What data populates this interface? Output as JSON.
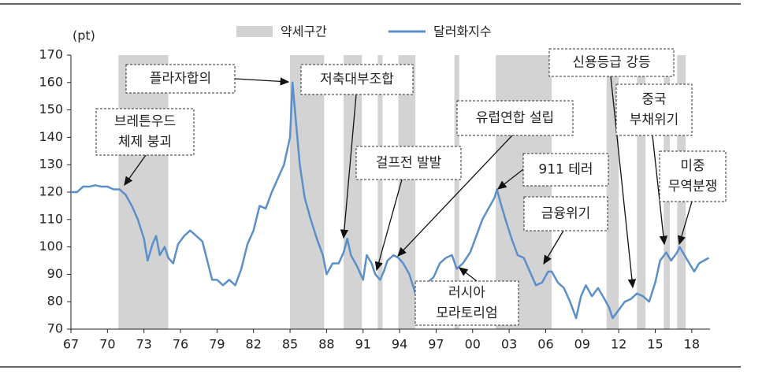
{
  "chart_data": {
    "type": "line",
    "y_label": "(pt)",
    "bands": {
      "name": "약세구간",
      "color": "#d3d3d3",
      "ranges": [
        [
          1970.9,
          1975.0
        ],
        [
          1985.0,
          1987.8
        ],
        [
          1989.4,
          1990.9
        ],
        [
          1992.2,
          1992.6
        ],
        [
          1993.9,
          1995.3
        ],
        [
          1998.5,
          1998.9
        ],
        [
          2001.9,
          2006.5
        ],
        [
          2011.0,
          2012.0
        ],
        [
          2013.5,
          2014.2
        ],
        [
          2015.7,
          2016.2
        ],
        [
          2016.8,
          2017.5
        ]
      ]
    },
    "x": [
      1967.0,
      1967.5,
      1968.0,
      1968.5,
      1969.0,
      1969.5,
      1970.0,
      1970.5,
      1971.0,
      1971.5,
      1972.0,
      1972.5,
      1973.0,
      1973.3,
      1973.7,
      1974.0,
      1974.3,
      1974.7,
      1975.0,
      1975.4,
      1975.8,
      1976.3,
      1976.8,
      1977.3,
      1977.8,
      1978.2,
      1978.6,
      1979.0,
      1979.5,
      1980.0,
      1980.5,
      1981.0,
      1981.5,
      1982.0,
      1982.5,
      1983.0,
      1983.5,
      1984.0,
      1984.5,
      1985.0,
      1985.2,
      1985.5,
      1985.8,
      1986.2,
      1986.7,
      1987.2,
      1987.7,
      1988.0,
      1988.5,
      1989.0,
      1989.4,
      1989.7,
      1990.0,
      1990.5,
      1991.0,
      1991.3,
      1991.7,
      1992.0,
      1992.4,
      1992.7,
      1993.0,
      1993.5,
      1993.9,
      1994.3,
      1994.8,
      1995.3,
      1995.8,
      1996.3,
      1996.8,
      1997.3,
      1997.8,
      1998.3,
      1998.7,
      1999.2,
      1999.8,
      2000.3,
      2000.8,
      2001.3,
      2001.8,
      2002.0,
      2002.3,
      2002.7,
      2003.2,
      2003.7,
      2004.2,
      2004.7,
      2005.2,
      2005.7,
      2006.2,
      2006.5,
      2007.0,
      2007.5,
      2008.0,
      2008.5,
      2008.9,
      2009.3,
      2009.8,
      2010.3,
      2010.7,
      2011.2,
      2011.5,
      2012.0,
      2012.5,
      2013.0,
      2013.5,
      2014.0,
      2014.5,
      2015.0,
      2015.4,
      2015.9,
      2016.3,
      2016.8,
      2017.0,
      2017.4,
      2017.8,
      2018.2,
      2018.6,
      2019.0,
      2019.4
    ],
    "series": [
      {
        "name": "달러화지수",
        "color": "#5b8fc9",
        "values": [
          120,
          120,
          122,
          122,
          122.5,
          122,
          122,
          121,
          121,
          119,
          115,
          110,
          103,
          95,
          101,
          104,
          97,
          100,
          96,
          94,
          101,
          104,
          106,
          104,
          102,
          95,
          88,
          88,
          86,
          88,
          86,
          92,
          101,
          106,
          115,
          114,
          120,
          125,
          130,
          140,
          160,
          145,
          130,
          118,
          110,
          103,
          97,
          90,
          94,
          94,
          98,
          103,
          97,
          93,
          88,
          97,
          94,
          90,
          88,
          91,
          95,
          97,
          96,
          94,
          90,
          83,
          87,
          87,
          89,
          94,
          96,
          97,
          92,
          94,
          98,
          104,
          110,
          114,
          118,
          121,
          116,
          110,
          103,
          97,
          96,
          91,
          86,
          87,
          91,
          91,
          87,
          85,
          80,
          74,
          82,
          86,
          82,
          85,
          82,
          78,
          74,
          77,
          80,
          81,
          83,
          82,
          80,
          87,
          95,
          98,
          95,
          98,
          100,
          97,
          94,
          91,
          94,
          95,
          96
        ]
      }
    ],
    "xlim": [
      1967,
      2019.5
    ],
    "ylim": [
      70,
      170
    ],
    "yticks": [
      70,
      80,
      90,
      100,
      110,
      120,
      130,
      140,
      150,
      160,
      170
    ],
    "xticks": [
      {
        "value": 1967,
        "label": "67"
      },
      {
        "value": 1970,
        "label": "70"
      },
      {
        "value": 1973,
        "label": "73"
      },
      {
        "value": 1976,
        "label": "76"
      },
      {
        "value": 1979,
        "label": "79"
      },
      {
        "value": 1982,
        "label": "82"
      },
      {
        "value": 1985,
        "label": "85"
      },
      {
        "value": 1988,
        "label": "88"
      },
      {
        "value": 1991,
        "label": "91"
      },
      {
        "value": 1994,
        "label": "94"
      },
      {
        "value": 1997,
        "label": "97"
      },
      {
        "value": 2000,
        "label": "00"
      },
      {
        "value": 2003,
        "label": "03"
      },
      {
        "value": 2006,
        "label": "06"
      },
      {
        "value": 2009,
        "label": "09"
      },
      {
        "value": 2012,
        "label": "12"
      },
      {
        "value": 2015,
        "label": "15"
      },
      {
        "value": 2018,
        "label": "18"
      }
    ],
    "annotations": [
      [
        "플라자합의"
      ],
      [
        "저축대부조합"
      ],
      [
        "브레튼우드",
        "체제 붕괴"
      ],
      [
        "유럽연합 설립"
      ],
      [
        "걸프전 발발"
      ],
      [
        "911 테러"
      ],
      [
        "금융위기"
      ],
      [
        "러시아",
        "모라토리엄"
      ],
      [
        "신용등급 강등"
      ],
      [
        "중국",
        "부채위기"
      ],
      [
        "미중",
        "무역분쟁"
      ]
    ]
  }
}
